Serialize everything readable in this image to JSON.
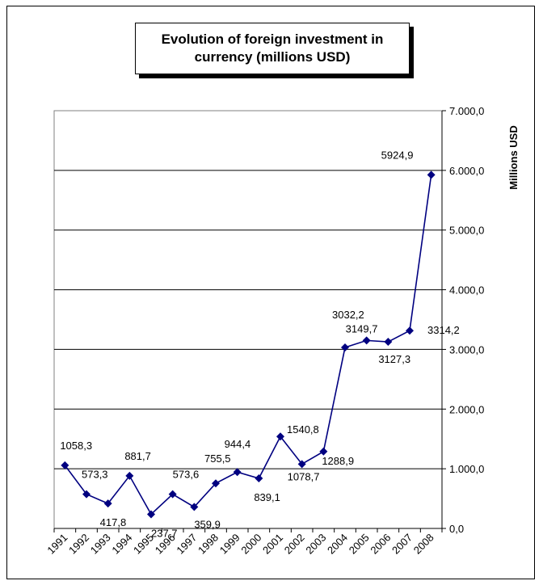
{
  "chart_data": {
    "type": "line",
    "title": "Evolution of foreign investment in currency (millions USD)",
    "ylabel": "Millions USD",
    "ylim": [
      0,
      7000
    ],
    "y_ticks": [
      0,
      1000,
      2000,
      3000,
      4000,
      5000,
      6000,
      7000
    ],
    "y_tick_labels": [
      "0,0",
      "1.000,0",
      "2.000,0",
      "3.000,0",
      "4.000,0",
      "5.000,0",
      "6.000,0",
      "7.000,0"
    ],
    "y_axis_side": "right",
    "grid": true,
    "categories": [
      "1991",
      "1992",
      "1993",
      "1994",
      "1995",
      "1996",
      "1997",
      "1998",
      "1999",
      "2000",
      "2001",
      "2002",
      "2003",
      "2004",
      "2005",
      "2006",
      "2007",
      "2008"
    ],
    "series": [
      {
        "color": "#000080",
        "values": [
          1058.3,
          573.3,
          417.8,
          881.7,
          237.7,
          573.6,
          359.9,
          755.5,
          944.4,
          839.1,
          1540.8,
          1078.7,
          1288.9,
          3032.2,
          3149.7,
          3127.3,
          3314.2,
          5924.9
        ],
        "data_labels": [
          "1058,3",
          "573,3",
          "417,8",
          "881,7",
          "237,7",
          "573,6",
          "359,9",
          "755,5",
          "944,4",
          "839,1",
          "1540,8",
          "1078,7",
          "1288,9",
          "3032,2",
          "3149,7",
          "3127,3",
          "3314,2",
          "5924,9"
        ]
      }
    ]
  }
}
